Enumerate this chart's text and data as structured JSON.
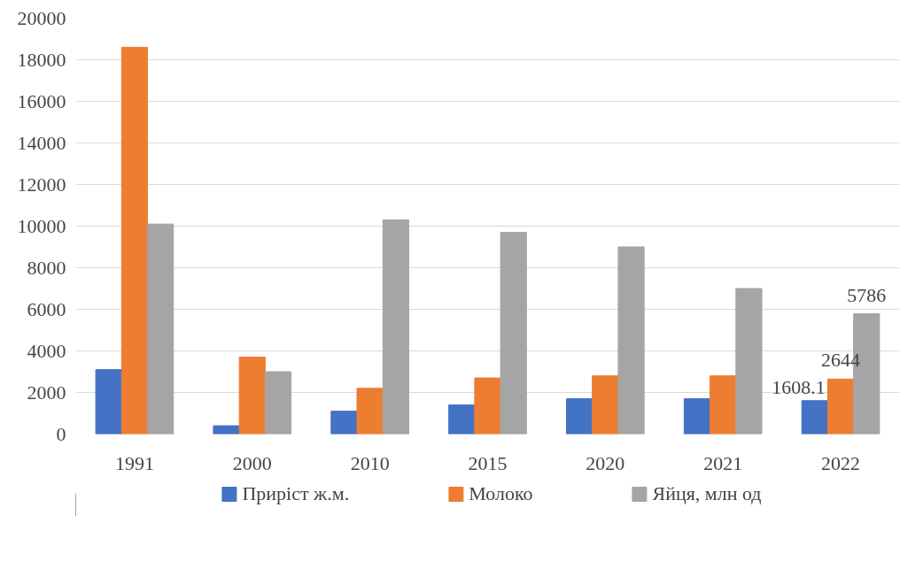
{
  "chart_data": {
    "type": "bar",
    "categories": [
      "1991",
      "2000",
      "2010",
      "2015",
      "2020",
      "2021",
      "2022"
    ],
    "series": [
      {
        "name": "Приріст ж.м.",
        "color": "#4472c4",
        "values": [
          3100,
          400,
          1100,
          1400,
          1700,
          1700,
          1608.1
        ],
        "value_labels": [
          null,
          null,
          null,
          null,
          null,
          null,
          "1608.1"
        ]
      },
      {
        "name": "Молоко",
        "color": "#ed7d31",
        "values": [
          18600,
          3700,
          2200,
          2700,
          2800,
          2800,
          2644
        ],
        "value_labels": [
          null,
          null,
          null,
          null,
          null,
          null,
          "2644"
        ]
      },
      {
        "name": "Яйця, млн од",
        "color": "#a5a5a5",
        "values": [
          10100,
          3000,
          10300,
          9700,
          9000,
          7000,
          5786
        ],
        "value_labels": [
          null,
          null,
          null,
          null,
          null,
          null,
          "5786"
        ]
      }
    ],
    "ylim": [
      0,
      20000
    ],
    "yticks": [
      0,
      2000,
      4000,
      6000,
      8000,
      10000,
      12000,
      14000,
      16000,
      18000,
      20000
    ],
    "grid": "y",
    "legend": "bottom"
  }
}
